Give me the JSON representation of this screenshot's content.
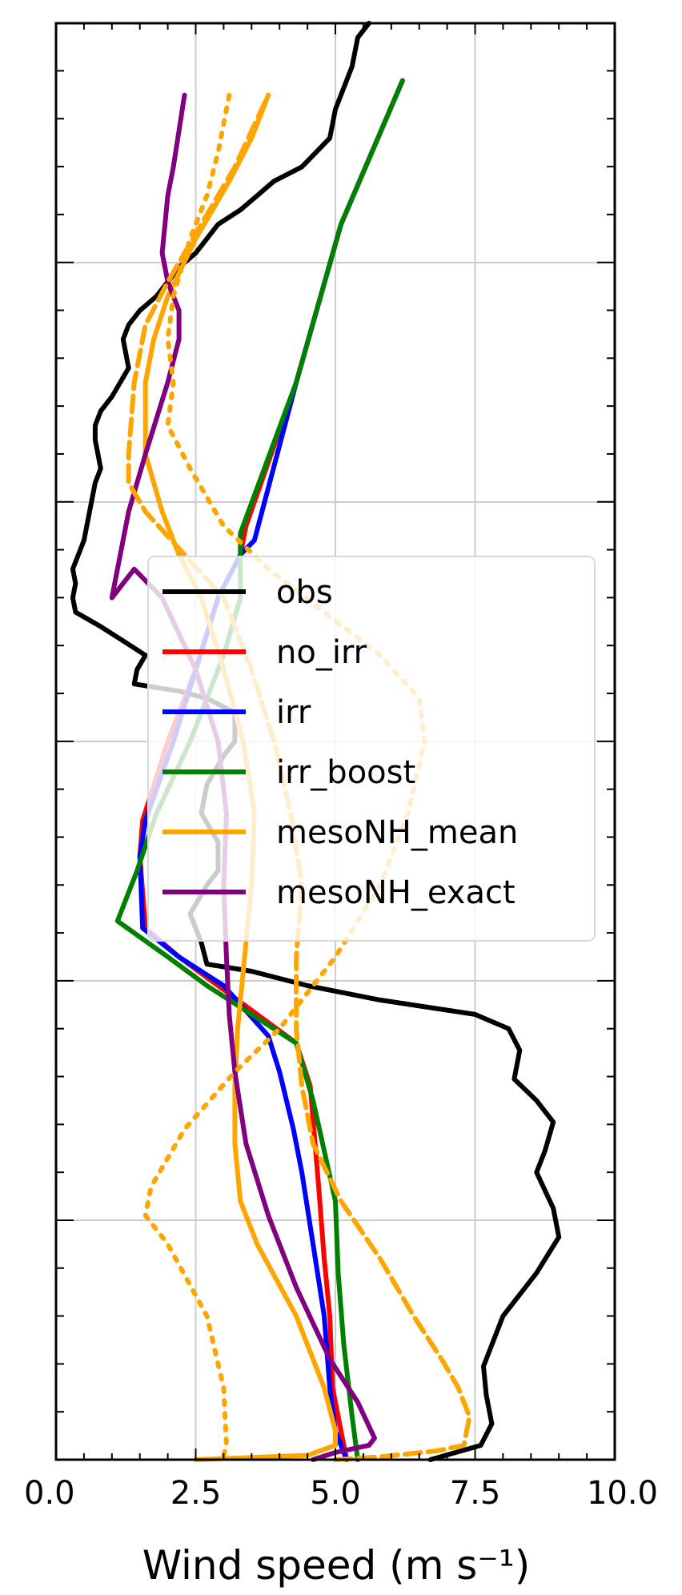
{
  "chart_data": {
    "type": "line",
    "title": "",
    "xlabel": "Wind speed (m s⁻¹)",
    "ylabel": "",
    "xlim": [
      0,
      10
    ],
    "ylim": [
      0,
      1
    ],
    "x_ticks": [
      "0.0",
      "2.5",
      "5.0",
      "7.5",
      "10.0"
    ],
    "x_tick_values": [
      0,
      2.5,
      5,
      7.5,
      10
    ],
    "y_major_ticks": [
      0,
      0.1667,
      0.3333,
      0.5,
      0.6667,
      0.8333,
      1
    ],
    "y_tick_labels_shown": false,
    "grid": true,
    "legend_position": "center-right",
    "series": [
      {
        "name": "obs",
        "color": "#000000",
        "style": "solid",
        "points": [
          [
            6.7,
            0
          ],
          [
            7.6,
            0.01
          ],
          [
            7.8,
            0.025
          ],
          [
            7.7,
            0.045
          ],
          [
            7.65,
            0.065
          ],
          [
            8.0,
            0.1
          ],
          [
            8.6,
            0.13
          ],
          [
            9.0,
            0.155
          ],
          [
            8.9,
            0.175
          ],
          [
            8.6,
            0.2
          ],
          [
            8.75,
            0.215
          ],
          [
            8.9,
            0.235
          ],
          [
            8.6,
            0.25
          ],
          [
            8.2,
            0.265
          ],
          [
            8.3,
            0.285
          ],
          [
            8.1,
            0.3
          ],
          [
            7.5,
            0.31
          ],
          [
            5.8,
            0.32
          ],
          [
            4.5,
            0.33
          ],
          [
            3.5,
            0.34
          ],
          [
            2.7,
            0.345
          ],
          [
            2.6,
            0.36
          ],
          [
            2.4,
            0.38
          ],
          [
            2.7,
            0.4
          ],
          [
            2.9,
            0.41
          ],
          [
            2.9,
            0.43
          ],
          [
            2.6,
            0.45
          ],
          [
            2.7,
            0.47
          ],
          [
            3.0,
            0.49
          ],
          [
            3.2,
            0.5
          ],
          [
            3.2,
            0.52
          ],
          [
            2.7,
            0.53
          ],
          [
            2.2,
            0.535
          ],
          [
            1.4,
            0.54
          ],
          [
            1.45,
            0.55
          ],
          [
            1.6,
            0.56
          ],
          [
            1.2,
            0.57
          ],
          [
            0.8,
            0.58
          ],
          [
            0.35,
            0.59
          ],
          [
            0.3,
            0.6
          ],
          [
            0.35,
            0.61
          ],
          [
            0.3,
            0.62
          ],
          [
            0.4,
            0.63
          ],
          [
            0.5,
            0.64
          ],
          [
            0.55,
            0.65
          ],
          [
            0.6,
            0.66
          ],
          [
            0.7,
            0.68
          ],
          [
            0.8,
            0.69
          ],
          [
            0.7,
            0.71
          ],
          [
            0.7,
            0.72
          ],
          [
            0.8,
            0.73
          ],
          [
            1.0,
            0.74
          ],
          [
            1.3,
            0.76
          ],
          [
            1.2,
            0.78
          ],
          [
            1.3,
            0.79
          ],
          [
            1.5,
            0.8
          ],
          [
            1.8,
            0.81
          ],
          [
            2.0,
            0.82
          ],
          [
            2.2,
            0.83
          ],
          [
            2.5,
            0.84
          ],
          [
            2.9,
            0.86
          ],
          [
            3.3,
            0.87
          ],
          [
            3.6,
            0.88
          ],
          [
            3.9,
            0.89
          ],
          [
            4.4,
            0.9
          ],
          [
            4.9,
            0.92
          ],
          [
            5.0,
            0.94
          ],
          [
            5.3,
            0.97
          ],
          [
            5.4,
            0.99
          ],
          [
            5.6,
            1.0
          ]
        ]
      },
      {
        "name": "no_irr",
        "color": "#ff0000",
        "style": "solid",
        "points": [
          [
            5.2,
            0
          ],
          [
            5.1,
            0.02
          ],
          [
            4.95,
            0.05
          ],
          [
            4.9,
            0.1
          ],
          [
            4.8,
            0.14
          ],
          [
            4.7,
            0.19
          ],
          [
            4.55,
            0.26
          ],
          [
            4.3,
            0.29
          ],
          [
            3.6,
            0.31
          ],
          [
            2.9,
            0.33
          ],
          [
            2.2,
            0.35
          ],
          [
            1.6,
            0.37
          ],
          [
            1.5,
            0.42
          ],
          [
            1.55,
            0.445
          ],
          [
            2.0,
            0.5
          ],
          [
            2.5,
            0.55
          ],
          [
            2.9,
            0.6
          ],
          [
            3.3,
            0.63
          ],
          [
            3.4,
            0.65
          ],
          [
            4.3,
            0.75
          ],
          [
            5.1,
            0.86
          ],
          [
            6.2,
            0.96
          ]
        ]
      },
      {
        "name": "irr",
        "color": "#0000ff",
        "style": "solid",
        "points": [
          [
            5.2,
            0
          ],
          [
            5.0,
            0.02
          ],
          [
            4.9,
            0.05
          ],
          [
            4.8,
            0.1
          ],
          [
            4.6,
            0.15
          ],
          [
            4.4,
            0.2
          ],
          [
            4.25,
            0.23
          ],
          [
            4.0,
            0.27
          ],
          [
            3.8,
            0.295
          ],
          [
            3.0,
            0.33
          ],
          [
            2.2,
            0.35
          ],
          [
            1.55,
            0.37
          ],
          [
            1.5,
            0.42
          ],
          [
            1.6,
            0.445
          ],
          [
            2.1,
            0.5
          ],
          [
            2.5,
            0.55
          ],
          [
            2.9,
            0.6
          ],
          [
            3.3,
            0.63
          ],
          [
            3.55,
            0.64
          ],
          [
            4.3,
            0.75
          ],
          [
            5.1,
            0.86
          ],
          [
            6.2,
            0.96
          ]
        ]
      },
      {
        "name": "irr_boost",
        "color": "#008000",
        "style": "solid",
        "points": [
          [
            5.4,
            0
          ],
          [
            5.3,
            0.03
          ],
          [
            5.15,
            0.08
          ],
          [
            5.05,
            0.13
          ],
          [
            5.0,
            0.18
          ],
          [
            4.6,
            0.25
          ],
          [
            4.3,
            0.29
          ],
          [
            3.5,
            0.31
          ],
          [
            2.7,
            0.33
          ],
          [
            2.0,
            0.35
          ],
          [
            1.1,
            0.375
          ],
          [
            1.45,
            0.41
          ],
          [
            1.8,
            0.45
          ],
          [
            2.4,
            0.5
          ],
          [
            3.0,
            0.56
          ],
          [
            3.3,
            0.6
          ],
          [
            3.3,
            0.645
          ],
          [
            4.3,
            0.75
          ],
          [
            5.1,
            0.86
          ],
          [
            6.2,
            0.96
          ]
        ]
      },
      {
        "name": "mesoNH_mean",
        "color": "#ffa500",
        "style": "solid",
        "points": [
          [
            2.5,
            0
          ],
          [
            4.5,
            0.003
          ],
          [
            5.0,
            0.01
          ],
          [
            5.0,
            0.02
          ],
          [
            4.8,
            0.05
          ],
          [
            4.3,
            0.1
          ],
          [
            3.6,
            0.15
          ],
          [
            3.3,
            0.18
          ],
          [
            3.2,
            0.22
          ],
          [
            3.2,
            0.26
          ],
          [
            3.25,
            0.3
          ],
          [
            3.4,
            0.36
          ],
          [
            3.5,
            0.4
          ],
          [
            3.55,
            0.45
          ],
          [
            3.35,
            0.5
          ],
          [
            3.0,
            0.55
          ],
          [
            2.6,
            0.6
          ],
          [
            2.2,
            0.63
          ],
          [
            1.9,
            0.66
          ],
          [
            1.6,
            0.7
          ],
          [
            1.6,
            0.75
          ],
          [
            1.75,
            0.78
          ],
          [
            2.0,
            0.81
          ],
          [
            2.5,
            0.85
          ],
          [
            3.1,
            0.89
          ],
          [
            3.5,
            0.92
          ],
          [
            3.8,
            0.95
          ]
        ]
      },
      {
        "name": "mesoNH_exact",
        "color": "#800080",
        "style": "solid",
        "points": [
          [
            4.6,
            0
          ],
          [
            5.0,
            0.005
          ],
          [
            5.6,
            0.01
          ],
          [
            5.7,
            0.015
          ],
          [
            5.4,
            0.04
          ],
          [
            4.9,
            0.07
          ],
          [
            4.3,
            0.12
          ],
          [
            3.8,
            0.17
          ],
          [
            3.4,
            0.22
          ],
          [
            3.2,
            0.27
          ],
          [
            3.1,
            0.31
          ],
          [
            3.05,
            0.35
          ],
          [
            3.0,
            0.4
          ],
          [
            3.05,
            0.45
          ],
          [
            2.9,
            0.5
          ],
          [
            2.5,
            0.55
          ],
          [
            1.9,
            0.6
          ],
          [
            1.4,
            0.62
          ],
          [
            1.0,
            0.6
          ],
          [
            1.3,
            0.66
          ],
          [
            1.6,
            0.7
          ],
          [
            2.0,
            0.75
          ],
          [
            2.2,
            0.78
          ],
          [
            2.2,
            0.8
          ],
          [
            2.0,
            0.82
          ],
          [
            1.9,
            0.84
          ],
          [
            2.0,
            0.88
          ],
          [
            2.1,
            0.9
          ],
          [
            2.3,
            0.95
          ]
        ]
      },
      {
        "name": "",
        "color": "#ffa500",
        "style": "dashed",
        "points": [
          [
            5.0,
            0
          ],
          [
            5.8,
            0.002
          ],
          [
            6.8,
            0.006
          ],
          [
            7.3,
            0.01
          ],
          [
            7.4,
            0.03
          ],
          [
            7.2,
            0.05
          ],
          [
            6.9,
            0.07
          ],
          [
            6.4,
            0.1
          ],
          [
            5.8,
            0.14
          ],
          [
            5.1,
            0.18
          ],
          [
            4.6,
            0.22
          ],
          [
            4.4,
            0.26
          ],
          [
            4.3,
            0.3
          ],
          [
            4.3,
            0.35
          ],
          [
            4.4,
            0.4
          ],
          [
            4.2,
            0.45
          ],
          [
            3.9,
            0.5
          ],
          [
            3.5,
            0.55
          ],
          [
            3.0,
            0.6
          ],
          [
            2.3,
            0.63
          ],
          [
            1.6,
            0.66
          ],
          [
            1.3,
            0.68
          ],
          [
            1.3,
            0.7
          ],
          [
            1.4,
            0.75
          ],
          [
            1.6,
            0.79
          ],
          [
            2.0,
            0.82
          ],
          [
            2.6,
            0.86
          ],
          [
            3.2,
            0.9
          ],
          [
            3.8,
            0.95
          ]
        ]
      },
      {
        "name": "",
        "color": "#ffa500",
        "style": "dotted",
        "points": [
          [
            3.0,
            0.003
          ],
          [
            3.05,
            0.01
          ],
          [
            3.0,
            0.05
          ],
          [
            2.7,
            0.1
          ],
          [
            2.0,
            0.15
          ],
          [
            1.6,
            0.17
          ],
          [
            1.7,
            0.19
          ],
          [
            2.3,
            0.23
          ],
          [
            3.2,
            0.27
          ],
          [
            4.0,
            0.3
          ],
          [
            5.0,
            0.35
          ],
          [
            5.8,
            0.4
          ],
          [
            6.3,
            0.45
          ],
          [
            6.6,
            0.5
          ],
          [
            6.5,
            0.53
          ],
          [
            5.8,
            0.56
          ],
          [
            4.8,
            0.59
          ],
          [
            3.8,
            0.62
          ],
          [
            3.0,
            0.65
          ],
          [
            2.4,
            0.69
          ],
          [
            2.0,
            0.72
          ],
          [
            2.1,
            0.75
          ],
          [
            2.0,
            0.78
          ],
          [
            2.1,
            0.81
          ],
          [
            2.4,
            0.85
          ],
          [
            2.7,
            0.88
          ],
          [
            2.9,
            0.91
          ],
          [
            3.1,
            0.95
          ]
        ]
      }
    ]
  }
}
